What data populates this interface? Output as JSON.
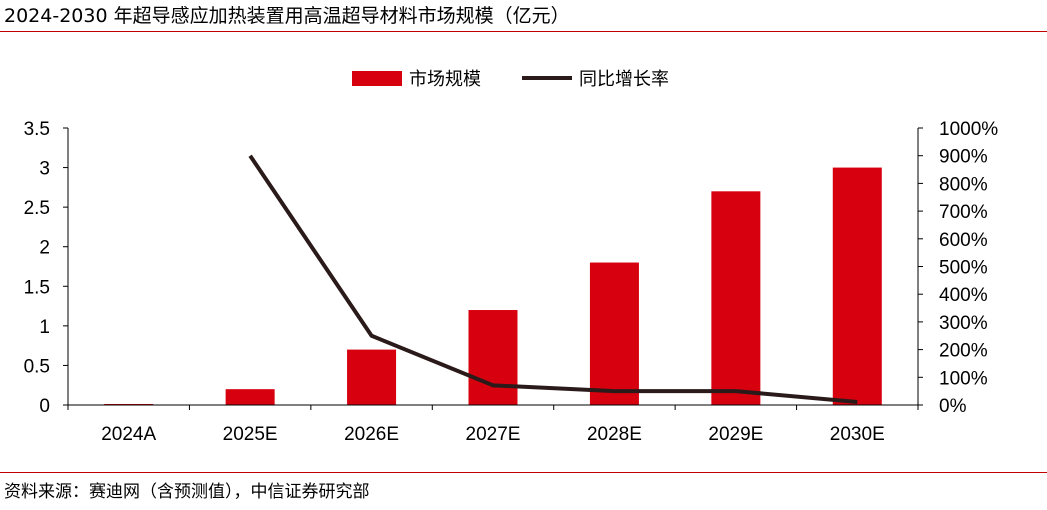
{
  "title": "2024-2030 年超导感应加热装置用高温超导材料市场规模（亿元）",
  "source": "资料来源：赛迪网（含预测值），中信证券研究部",
  "colors": {
    "bar": "#d7000f",
    "line": "#2b1a1a",
    "rule": "#c00000",
    "axis": "#000000"
  },
  "chart_data": {
    "type": "bar+line",
    "categories": [
      "2024A",
      "2025E",
      "2026E",
      "2027E",
      "2028E",
      "2029E",
      "2030E"
    ],
    "series": [
      {
        "name": "市场规模",
        "type": "bar",
        "axis": "left",
        "values": [
          0.01,
          0.2,
          0.7,
          1.2,
          1.8,
          2.7,
          3.0
        ]
      },
      {
        "name": "同比增长率",
        "type": "line",
        "axis": "right",
        "values": [
          null,
          9.0,
          2.5,
          0.71,
          0.5,
          0.5,
          0.11
        ]
      }
    ],
    "y_left": {
      "range": [
        0,
        3.5
      ],
      "ticks": [
        "0",
        "0.5",
        "1",
        "1.5",
        "2",
        "2.5",
        "3",
        "3.5"
      ]
    },
    "y_right": {
      "range": [
        0,
        10
      ],
      "ticks": [
        "0%",
        "100%",
        "200%",
        "300%",
        "400%",
        "500%",
        "600%",
        "700%",
        "800%",
        "900%",
        "1000%"
      ]
    },
    "legend": {
      "position": "top-center",
      "items": [
        "市场规模",
        "同比增长率"
      ]
    },
    "grid": false
  }
}
